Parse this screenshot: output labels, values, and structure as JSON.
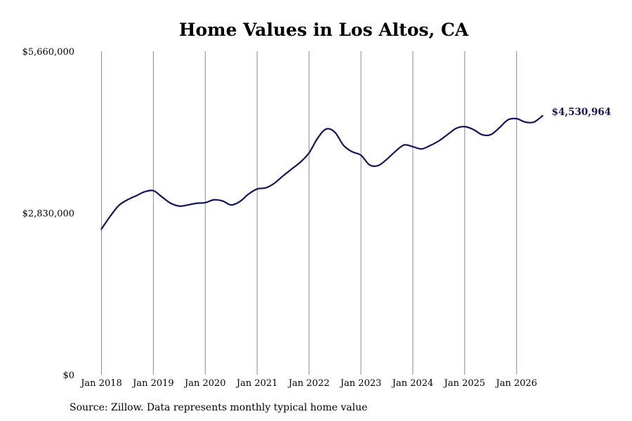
{
  "chart_data": {
    "type": "line",
    "title": "Home Values in Los Altos, CA",
    "source": "Source: Zillow. Data represents monthly typical home value",
    "xlabel": "",
    "ylabel": "",
    "ylim": [
      0,
      5660000
    ],
    "y_ticks": [
      {
        "value": 0,
        "label": "$0"
      },
      {
        "value": 2830000,
        "label": "$2,830,000"
      },
      {
        "value": 5660000,
        "label": "$5,660,000"
      }
    ],
    "x_ticks": [
      {
        "value": "2018-01",
        "label": "Jan 2018"
      },
      {
        "value": "2019-01",
        "label": "Jan 2019"
      },
      {
        "value": "2020-01",
        "label": "Jan 2020"
      },
      {
        "value": "2021-01",
        "label": "Jan 2021"
      },
      {
        "value": "2022-01",
        "label": "Jan 2022"
      },
      {
        "value": "2023-01",
        "label": "Jan 2023"
      },
      {
        "value": "2024-01",
        "label": "Jan 2024"
      },
      {
        "value": "2025-01",
        "label": "Jan 2025"
      },
      {
        "value": "2026-01",
        "label": "Jan 2026"
      }
    ],
    "grid": {
      "vertical": true,
      "horizontal": false
    },
    "line_color": "#14145a",
    "end_label": "$4,530,964",
    "series": [
      {
        "x": [
          "2018-01",
          "2018-03",
          "2018-05",
          "2018-07",
          "2018-09",
          "2018-11",
          "2019-01",
          "2019-03",
          "2019-05",
          "2019-07",
          "2019-09",
          "2019-11",
          "2020-01",
          "2020-03",
          "2020-05",
          "2020-07",
          "2020-09",
          "2020-11",
          "2021-01",
          "2021-03",
          "2021-05",
          "2021-07",
          "2021-09",
          "2021-11",
          "2022-01",
          "2022-03",
          "2022-05",
          "2022-07",
          "2022-09",
          "2022-11",
          "2023-01",
          "2023-03",
          "2023-05",
          "2023-07",
          "2023-09",
          "2023-11",
          "2024-01",
          "2024-03",
          "2024-05",
          "2024-07",
          "2024-09",
          "2024-11",
          "2025-01",
          "2025-03",
          "2025-05",
          "2025-07",
          "2025-09",
          "2025-11",
          "2026-01",
          "2026-03",
          "2026-05",
          "2026-07"
        ],
        "values": [
          2550000,
          2770000,
          2960000,
          3060000,
          3130000,
          3200000,
          3220000,
          3110000,
          3000000,
          2950000,
          2970000,
          3000000,
          3010000,
          3060000,
          3040000,
          2970000,
          3030000,
          3160000,
          3250000,
          3270000,
          3350000,
          3480000,
          3600000,
          3720000,
          3880000,
          4140000,
          4300000,
          4240000,
          4010000,
          3900000,
          3840000,
          3670000,
          3660000,
          3770000,
          3910000,
          4020000,
          3990000,
          3950000,
          4010000,
          4090000,
          4200000,
          4310000,
          4340000,
          4290000,
          4200000,
          4200000,
          4320000,
          4460000,
          4480000,
          4420000,
          4420000,
          4530964
        ]
      }
    ]
  }
}
